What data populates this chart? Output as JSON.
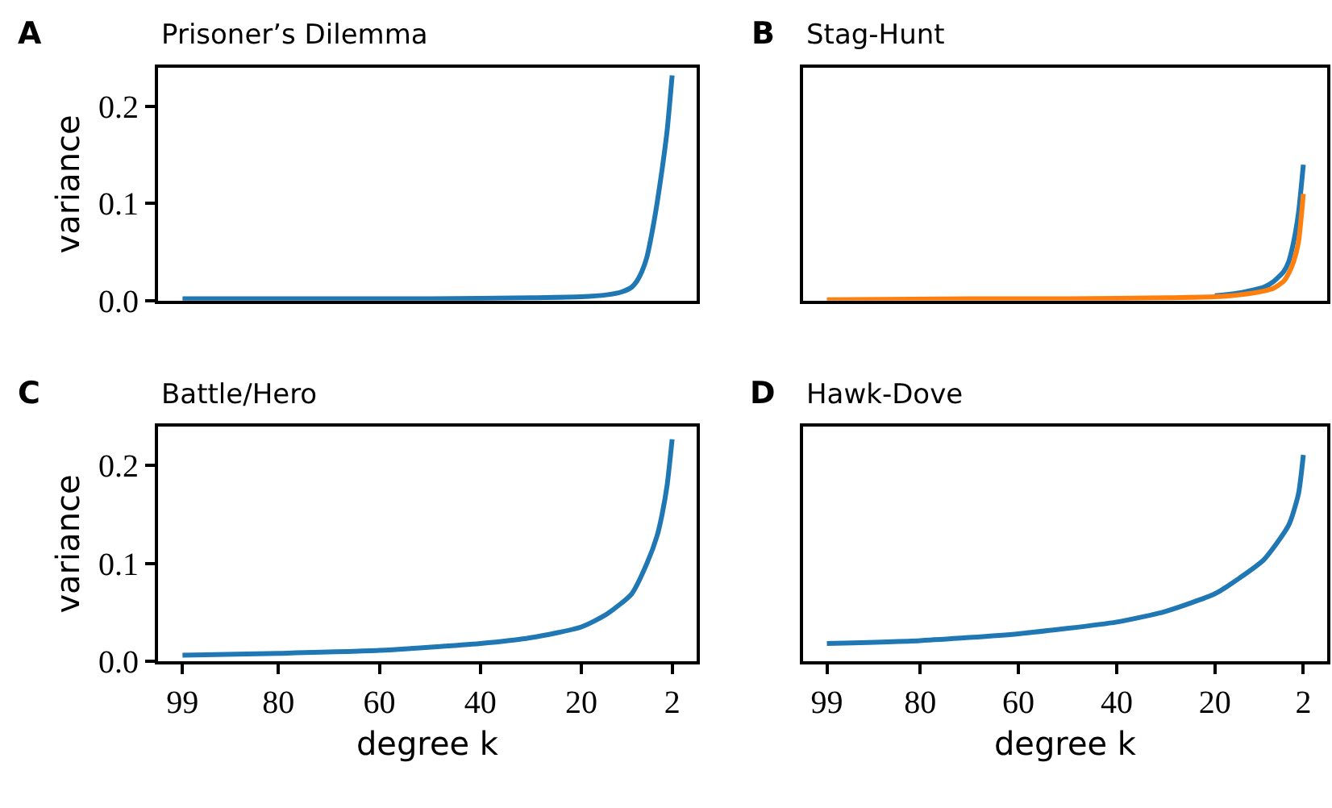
{
  "chart_data": [
    {
      "type": "line",
      "title": "Prisoner’s Dilemma",
      "annotations": [
        "A"
      ],
      "ylabel": "variance",
      "tick_labels": "y",
      "xlim": [
        103.85,
        -2.85
      ],
      "ylim": [
        0,
        0.24
      ],
      "yticks": [
        {
          "value": 0,
          "label": "0.0"
        },
        {
          "value": 0.1,
          "label": "0.1"
        },
        {
          "value": 0.2,
          "label": "0.2"
        }
      ],
      "x": [
        99,
        70,
        50,
        30,
        20,
        15,
        12,
        10,
        9,
        8,
        7,
        6,
        5,
        4,
        3,
        2
      ],
      "series": [
        {
          "color": "#1f77b4",
          "values": [
            0.002,
            0.002,
            0.002,
            0.003,
            0.004,
            0.006,
            0.009,
            0.014,
            0.02,
            0.03,
            0.045,
            0.07,
            0.1,
            0.135,
            0.175,
            0.232
          ]
        }
      ]
    },
    {
      "type": "line",
      "title": "Stag-Hunt",
      "annotations": [
        "B"
      ],
      "tick_labels": false,
      "xlim": [
        103.85,
        -2.85
      ],
      "ylim": [
        0,
        0.24
      ],
      "x": [
        99,
        70,
        50,
        30,
        20,
        15,
        10,
        8,
        6,
        5,
        4,
        3,
        2
      ],
      "series": [
        {
          "color": "#1f77b4",
          "values": [
            null,
            null,
            null,
            null,
            0.005,
            0.008,
            0.014,
            0.02,
            0.03,
            0.04,
            0.06,
            0.09,
            0.14
          ]
        },
        {
          "color": "#ff7f0e",
          "values": [
            0.001,
            0.002,
            0.002,
            0.003,
            0.004,
            0.006,
            0.01,
            0.013,
            0.02,
            0.028,
            0.04,
            0.06,
            0.11
          ]
        }
      ]
    },
    {
      "type": "line",
      "title": "Battle/Hero",
      "annotations": [
        "C"
      ],
      "xlabel": "degree k",
      "ylabel": "variance",
      "xlim": [
        103.85,
        -2.85
      ],
      "xticks": [
        99,
        80,
        60,
        40,
        20,
        2
      ],
      "ylim": [
        0,
        0.24
      ],
      "yticks": [
        {
          "value": 0,
          "label": "0.0"
        },
        {
          "value": 0.1,
          "label": "0.1"
        },
        {
          "value": 0.2,
          "label": "0.2"
        }
      ],
      "x": [
        99,
        80,
        60,
        40,
        30,
        20,
        15,
        10,
        7,
        5,
        4,
        3,
        2
      ],
      "series": [
        {
          "color": "#1f77b4",
          "values": [
            0.006,
            0.008,
            0.011,
            0.018,
            0.024,
            0.035,
            0.048,
            0.069,
            0.1,
            0.128,
            0.15,
            0.18,
            0.227
          ]
        }
      ]
    },
    {
      "type": "line",
      "title": "Hawk-Dove",
      "annotations": [
        "D"
      ],
      "xlabel": "degree k",
      "tick_labels": "x",
      "xlim": [
        103.85,
        -2.85
      ],
      "xticks": [
        99,
        80,
        60,
        40,
        20,
        2
      ],
      "ylim": [
        0,
        0.24
      ],
      "x": [
        99,
        80,
        60,
        40,
        30,
        20,
        15,
        10,
        5,
        3,
        2
      ],
      "series": [
        {
          "color": "#1f77b4",
          "values": [
            0.018,
            0.021,
            0.028,
            0.04,
            0.051,
            0.069,
            0.085,
            0.104,
            0.139,
            0.171,
            0.211
          ]
        }
      ]
    }
  ]
}
